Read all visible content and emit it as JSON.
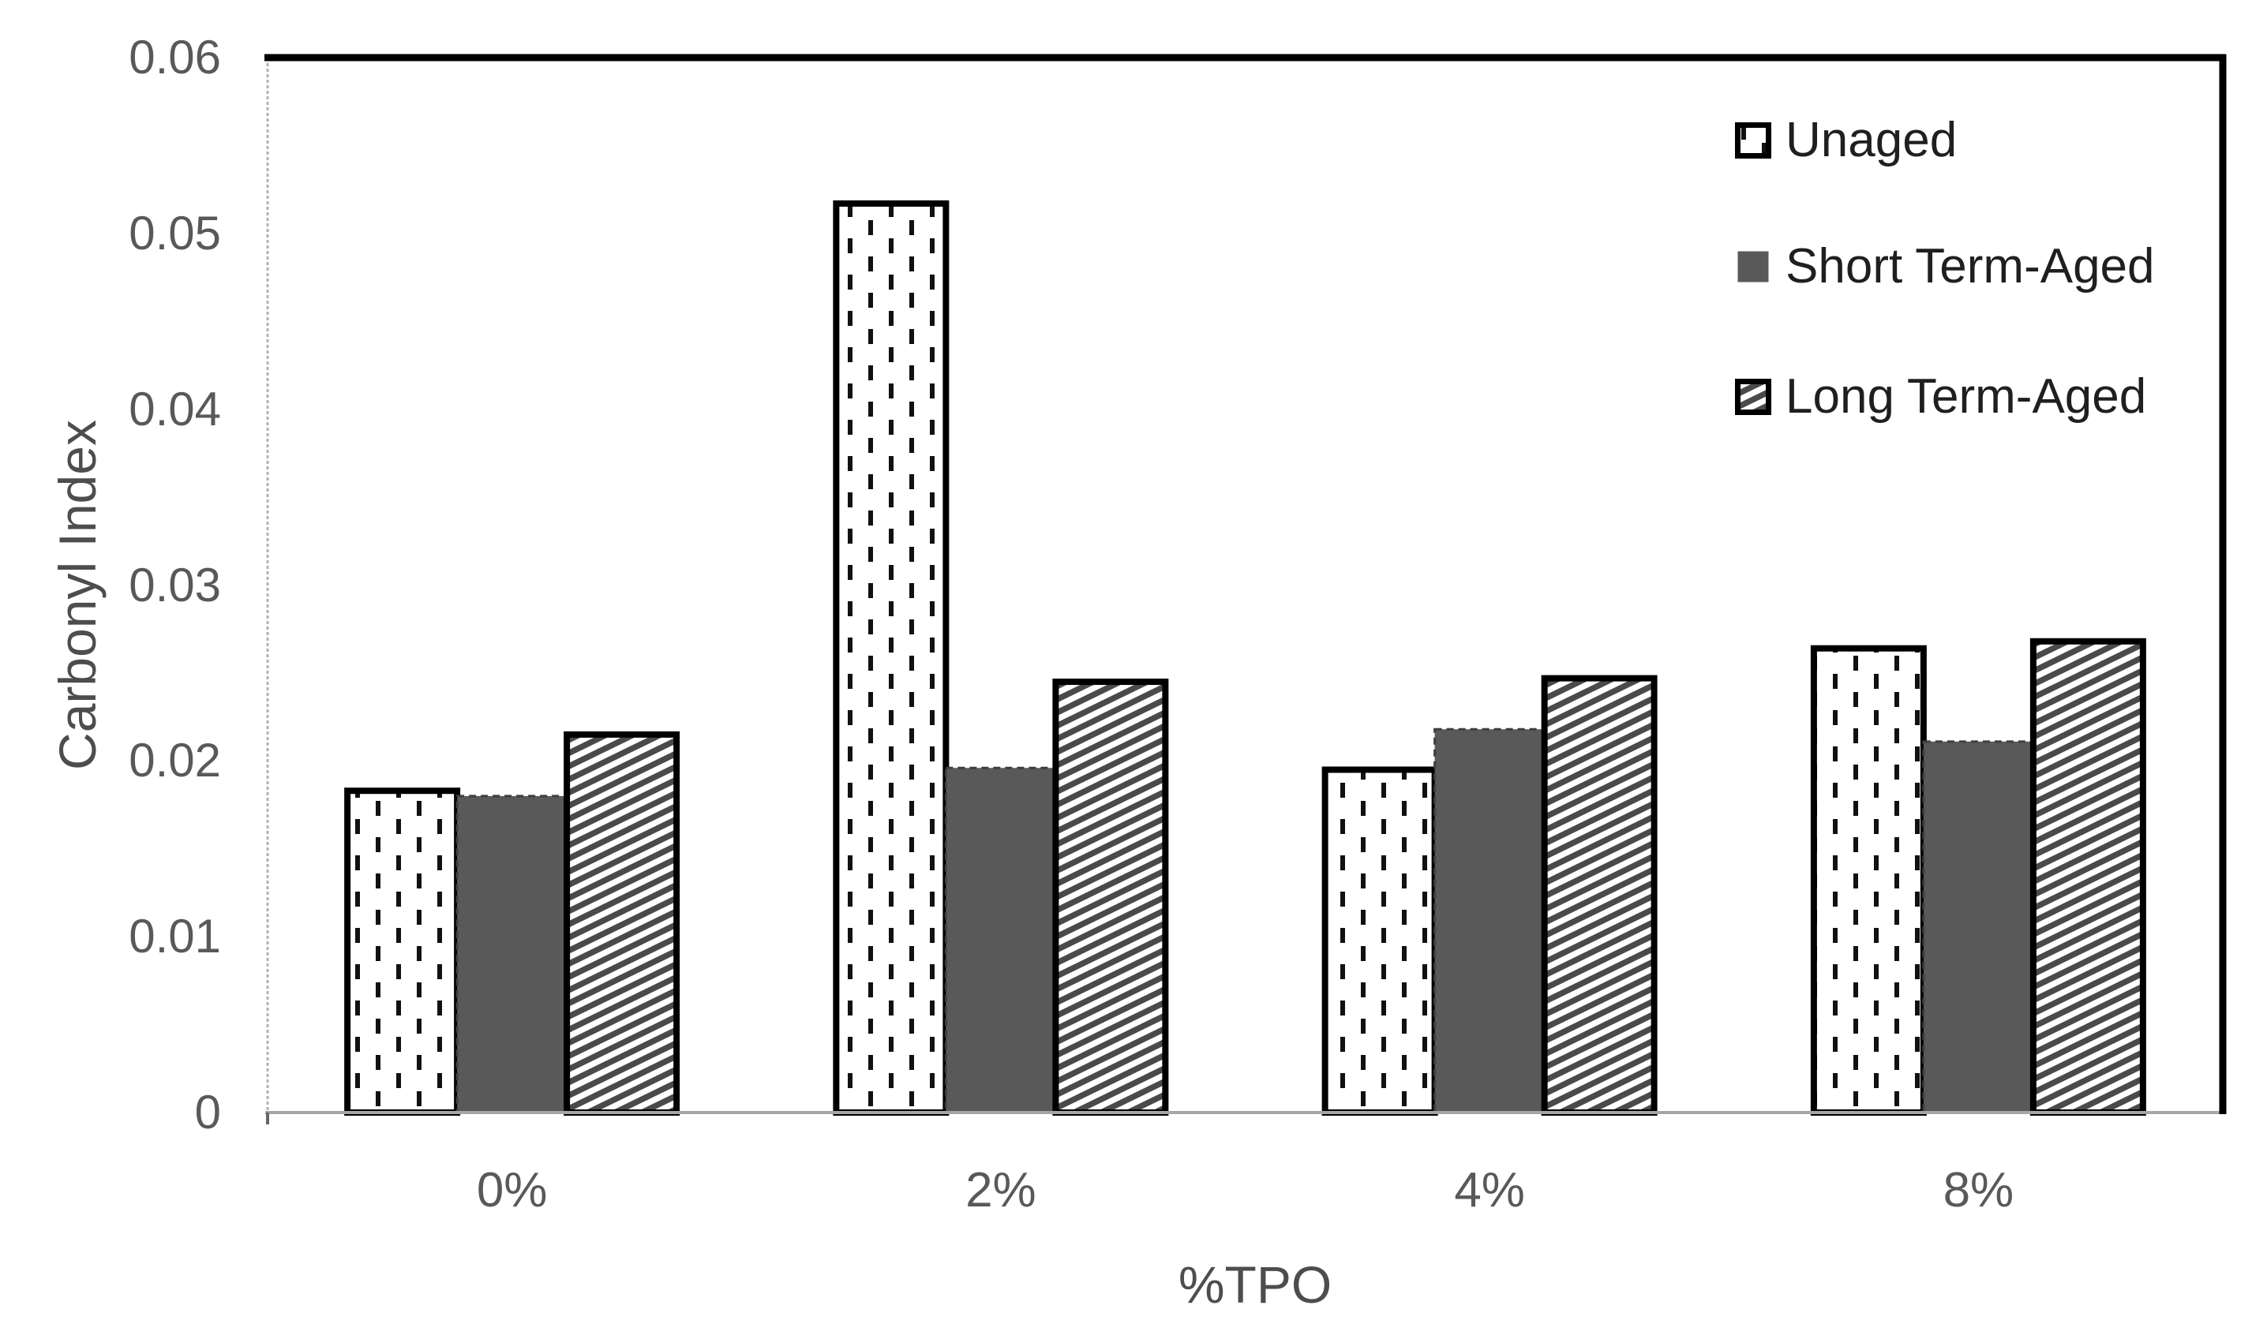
{
  "chart_data": {
    "type": "bar",
    "title": "",
    "xlabel": "%TPO",
    "ylabel": "Carbonyl Index",
    "categories": [
      "0%",
      "2%",
      "4%",
      "8%"
    ],
    "series": [
      {
        "name": "Unaged",
        "pattern": "vertical-dashes",
        "values": [
          0.0183,
          0.0517,
          0.0195,
          0.0264
        ]
      },
      {
        "name": "Short Term-Aged",
        "pattern": "solid",
        "values": [
          0.018,
          0.0196,
          0.0218,
          0.0211
        ]
      },
      {
        "name": "Long Term-Aged",
        "pattern": "diagonal-hatch",
        "values": [
          0.0215,
          0.0245,
          0.0247,
          0.0268
        ]
      }
    ],
    "ylim": [
      0,
      0.06
    ],
    "yticks": [
      0,
      0.01,
      0.02,
      0.03,
      0.04,
      0.05,
      0.06
    ],
    "ytick_labels": [
      "0",
      "0.01",
      "0.02",
      "0.03",
      "0.04",
      "0.05",
      "0.06"
    ],
    "grid": false,
    "legend_position": "top-right"
  },
  "colors": {
    "bar_solid_fill": "#595959",
    "bar_solid_border": "#3f3f3f",
    "pattern_ink": "#111111",
    "hatch_stripe": "#4a4a4a",
    "bar_outline": "#000000",
    "plot_border_black": "#000000",
    "axis_gray": "#a6a6a6",
    "left_spine_gray": "#b3b3b3",
    "tick_text": "#595959",
    "axis_title_text": "#4d4d4d",
    "legend_text": "#1f1f1f",
    "background": "#ffffff"
  }
}
